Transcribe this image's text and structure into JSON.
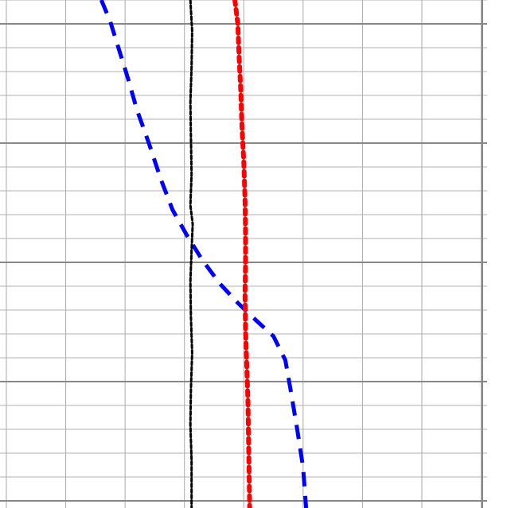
{
  "chart_data": {
    "type": "line",
    "title": "",
    "xlabel": "",
    "ylabel": "",
    "xlim": [
      0,
      8.1
    ],
    "ylim": [
      0,
      21.3
    ],
    "grid": true,
    "legend": "none",
    "series": [
      {
        "color": "#0000ff",
        "dash": "dashed",
        "points": [
          [
            1.6,
            21.3
          ],
          [
            1.75,
            20.4
          ],
          [
            1.9,
            19.2
          ],
          [
            2.05,
            18.0
          ],
          [
            2.2,
            16.7
          ],
          [
            2.4,
            15.3
          ],
          [
            2.6,
            13.8
          ],
          [
            2.8,
            12.5
          ],
          [
            3.05,
            11.4
          ],
          [
            3.3,
            10.4
          ],
          [
            3.6,
            9.4
          ],
          [
            3.9,
            8.6
          ],
          [
            4.15,
            8.0
          ],
          [
            4.5,
            7.2
          ],
          [
            4.7,
            6.2
          ],
          [
            4.8,
            4.8
          ],
          [
            4.9,
            3.3
          ],
          [
            5.0,
            1.7
          ],
          [
            5.05,
            0.0
          ]
        ]
      },
      {
        "color": "#ff0000",
        "dash": "dotted",
        "points": [
          [
            3.85,
            21.3
          ],
          [
            3.9,
            20.3
          ],
          [
            3.92,
            19.0
          ],
          [
            3.95,
            17.5
          ],
          [
            3.97,
            16.0
          ],
          [
            4.0,
            14.5
          ],
          [
            4.02,
            13.0
          ],
          [
            4.03,
            11.5
          ],
          [
            4.03,
            10.3
          ],
          [
            4.02,
            9.0
          ],
          [
            4.03,
            7.5
          ],
          [
            4.05,
            6.0
          ],
          [
            4.07,
            4.5
          ],
          [
            4.08,
            3.0
          ],
          [
            4.09,
            1.5
          ],
          [
            4.1,
            0.0
          ]
        ]
      },
      {
        "color": "#000000",
        "dash": "dotted-fine",
        "points": [
          [
            3.1,
            21.3
          ],
          [
            3.13,
            20.0
          ],
          [
            3.12,
            18.5
          ],
          [
            3.1,
            17.0
          ],
          [
            3.11,
            15.5
          ],
          [
            3.12,
            14.0
          ],
          [
            3.1,
            12.7
          ],
          [
            3.14,
            11.9
          ],
          [
            3.12,
            10.8
          ],
          [
            3.1,
            9.5
          ],
          [
            3.11,
            8.0
          ],
          [
            3.13,
            6.5
          ],
          [
            3.11,
            5.0
          ],
          [
            3.1,
            3.5
          ],
          [
            3.12,
            2.0
          ],
          [
            3.12,
            0.0
          ]
        ]
      }
    ]
  }
}
